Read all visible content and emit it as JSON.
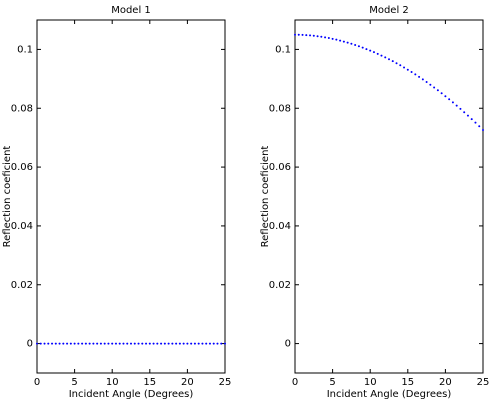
{
  "chart_data": [
    {
      "type": "scatter",
      "title": "Model 1",
      "xlabel": "Incident Angle (Degrees)",
      "ylabel": "Reflection coeficient",
      "xlim": [
        0,
        25
      ],
      "ylim": [
        -0.01,
        0.11
      ],
      "xticks": [
        0,
        5,
        10,
        15,
        20,
        25
      ],
      "yticks": [
        0,
        0.02,
        0.04,
        0.06,
        0.08,
        0.1
      ],
      "ytick_labels": [
        "0",
        "0.02",
        "0.04",
        "0.06",
        "0.08",
        "0.1"
      ],
      "grid": false,
      "marker_color": "#0000ff",
      "series": [
        {
          "x": [
            0,
            0.5,
            1,
            1.5,
            2,
            2.5,
            3,
            3.5,
            4,
            4.5,
            5,
            5.5,
            6,
            6.5,
            7,
            7.5,
            8,
            8.5,
            9,
            9.5,
            10,
            10.5,
            11,
            11.5,
            12,
            12.5,
            13,
            13.5,
            14,
            14.5,
            15,
            15.5,
            16,
            16.5,
            17,
            17.5,
            18,
            18.5,
            19,
            19.5,
            20,
            20.5,
            21,
            21.5,
            22,
            22.5,
            23,
            23.5,
            24,
            24.5,
            25
          ],
          "y": [
            0,
            0,
            0,
            0,
            0,
            0,
            0,
            0,
            0,
            0,
            0,
            0,
            0,
            0,
            0,
            0,
            0,
            0,
            0,
            0,
            0,
            0,
            0,
            0,
            0,
            0,
            0,
            0,
            0,
            0,
            0,
            0,
            0,
            0,
            0,
            0,
            0,
            0,
            0,
            0,
            0,
            0,
            0,
            0,
            0,
            0,
            0,
            0,
            0,
            0,
            0
          ]
        }
      ]
    },
    {
      "type": "scatter",
      "title": "Model 2",
      "xlabel": "Incident Angle (Degrees)",
      "ylabel": "Reflection coeficient",
      "xlim": [
        0,
        25
      ],
      "ylim": [
        -0.01,
        0.11
      ],
      "xticks": [
        0,
        5,
        10,
        15,
        20,
        25
      ],
      "yticks": [
        0,
        0.02,
        0.04,
        0.06,
        0.08,
        0.1
      ],
      "ytick_labels": [
        "0",
        "0.02",
        "0.04",
        "0.06",
        "0.08",
        "0.1"
      ],
      "grid": false,
      "marker_color": "#0000ff",
      "series": [
        {
          "x": [
            0,
            0.5,
            1,
            1.5,
            2,
            2.5,
            3,
            3.5,
            4,
            4.5,
            5,
            5.5,
            6,
            6.5,
            7,
            7.5,
            8,
            8.5,
            9,
            9.5,
            10,
            10.5,
            11,
            11.5,
            12,
            12.5,
            13,
            13.5,
            14,
            14.5,
            15,
            15.5,
            16,
            16.5,
            17,
            17.5,
            18,
            18.5,
            19,
            19.5,
            20,
            20.5,
            21,
            21.5,
            22,
            22.5,
            23,
            23.5,
            24,
            24.5,
            25
          ],
          "y": [
            0.105,
            0.10498,
            0.10494,
            0.10487,
            0.10477,
            0.10464,
            0.10449,
            0.1043,
            0.10409,
            0.10386,
            0.1036,
            0.10331,
            0.103,
            0.10266,
            0.1023,
            0.10191,
            0.1015,
            0.10106,
            0.1006,
            0.10011,
            0.0996,
            0.09906,
            0.0985,
            0.09791,
            0.0973,
            0.09666,
            0.096,
            0.09531,
            0.0946,
            0.09386,
            0.0931,
            0.09231,
            0.0915,
            0.09066,
            0.0898,
            0.08891,
            0.088,
            0.08706,
            0.0861,
            0.08511,
            0.0841,
            0.08306,
            0.082,
            0.08091,
            0.0798,
            0.07866,
            0.0775,
            0.07631,
            0.0751,
            0.07386,
            0.0726
          ]
        }
      ]
    }
  ]
}
